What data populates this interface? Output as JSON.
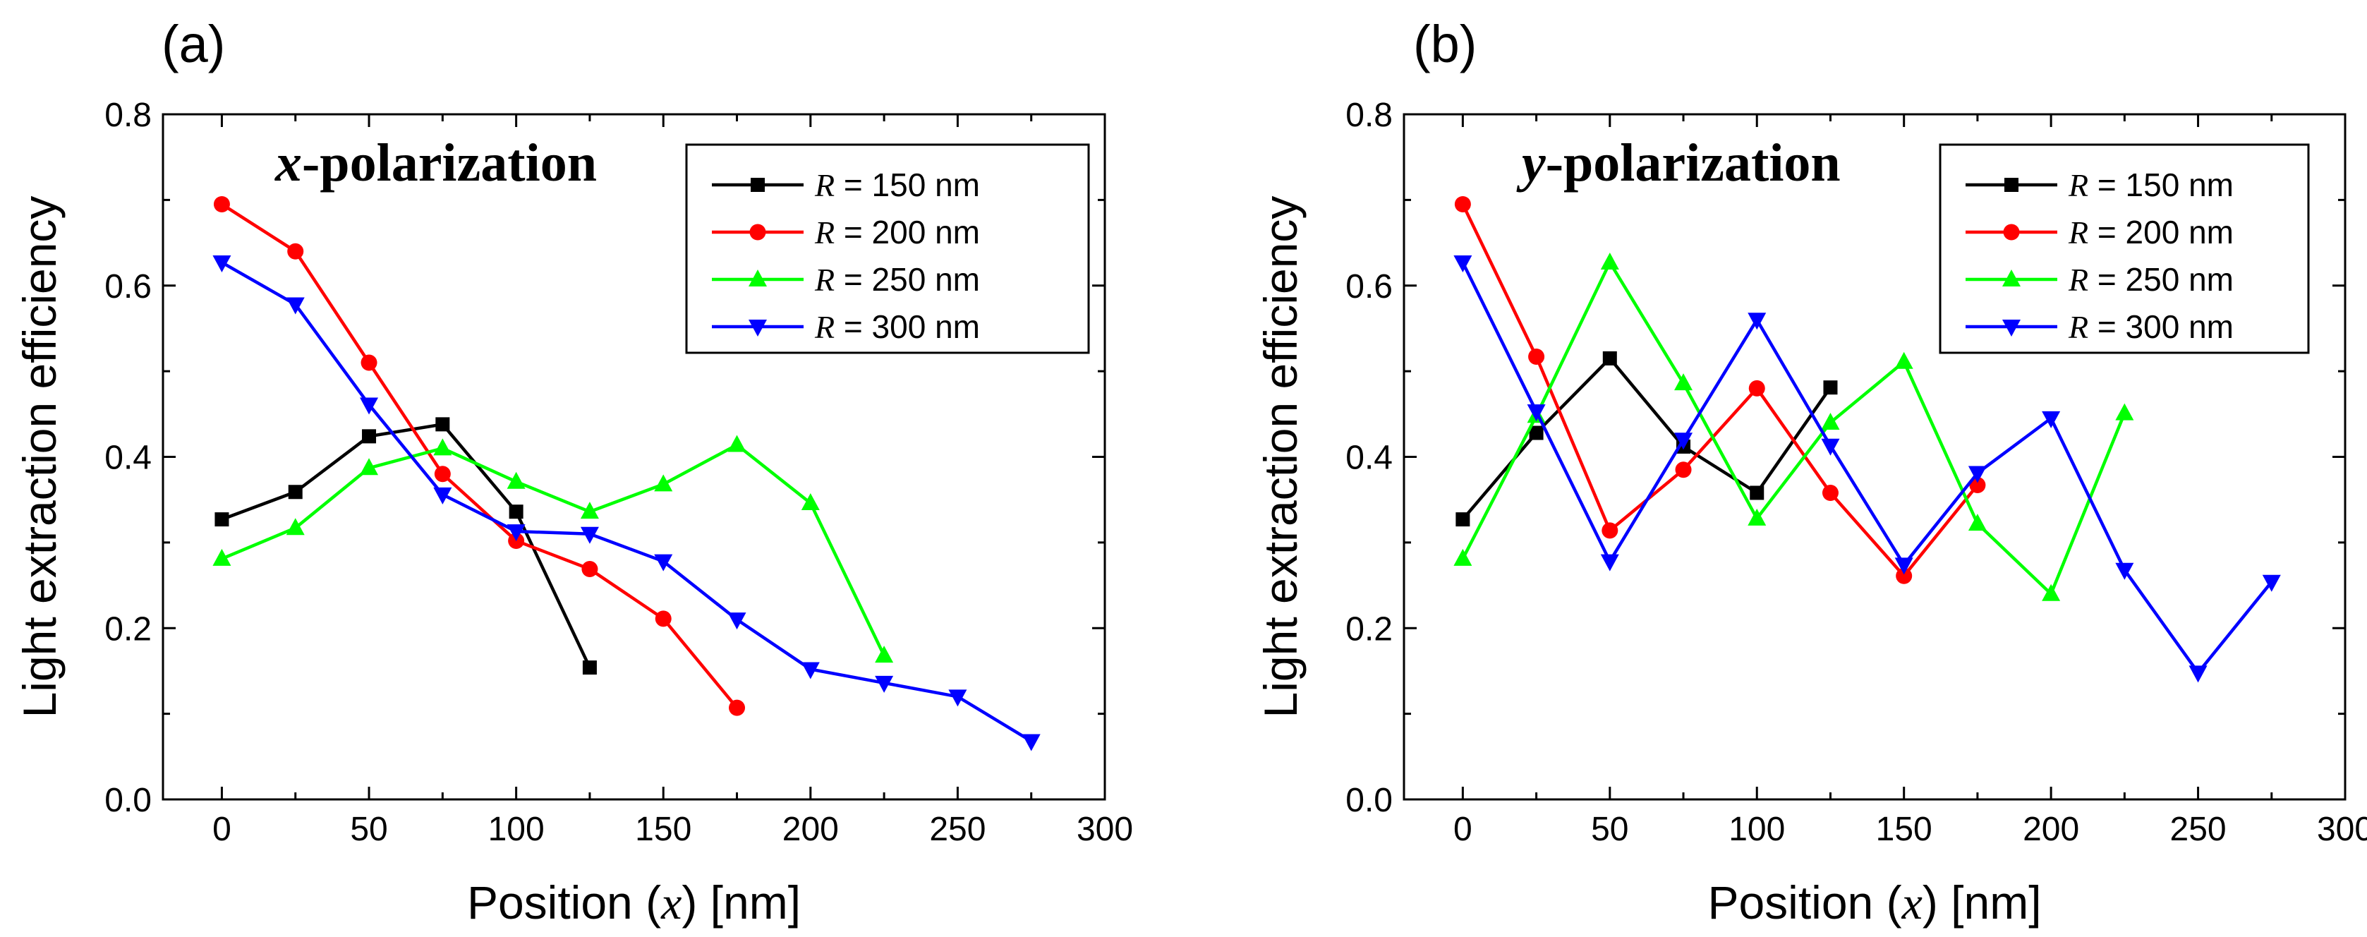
{
  "chart_data": [
    {
      "type": "line",
      "panel_label": "(a)",
      "title_var": "x",
      "title_rest": "-polarization",
      "xlabel_pre": "Position (",
      "xlabel_var": "x",
      "xlabel_post": ") [nm]",
      "ylabel": "Light extraction efficiency",
      "xlim": [
        -20,
        300
      ],
      "ylim": [
        0,
        0.8
      ],
      "xticks": [
        0,
        50,
        100,
        150,
        200,
        250,
        300
      ],
      "yticks": [
        0.0,
        0.2,
        0.4,
        0.6,
        0.8
      ],
      "ytick_labels": [
        "0.0",
        "0.2",
        "0.4",
        "0.6",
        "0.8"
      ],
      "legend_position": "top-right",
      "series": [
        {
          "name": "R = 150 nm",
          "legend_var": "R",
          "legend_rest": " = 150 nm",
          "color": "#000000",
          "marker": "square",
          "x": [
            0,
            25,
            50,
            75,
            100,
            125
          ],
          "y": [
            0.327,
            0.359,
            0.424,
            0.438,
            0.336,
            0.154
          ]
        },
        {
          "name": "R = 200 nm",
          "legend_var": "R",
          "legend_rest": " = 200 nm",
          "color": "#ff0000",
          "marker": "circle",
          "x": [
            0,
            25,
            50,
            75,
            100,
            125,
            150,
            175
          ],
          "y": [
            0.695,
            0.64,
            0.51,
            0.38,
            0.302,
            0.269,
            0.211,
            0.107
          ]
        },
        {
          "name": "R = 250 nm",
          "legend_var": "R",
          "legend_rest": " = 250 nm",
          "color": "#00ff00",
          "marker": "triangle-up",
          "x": [
            0,
            25,
            50,
            75,
            100,
            125,
            150,
            175,
            200,
            225
          ],
          "y": [
            0.281,
            0.317,
            0.387,
            0.41,
            0.371,
            0.336,
            0.368,
            0.414,
            0.346,
            0.168
          ]
        },
        {
          "name": "R = 300 nm",
          "legend_var": "R",
          "legend_rest": " = 300 nm",
          "color": "#0000ff",
          "marker": "triangle-down",
          "x": [
            0,
            25,
            50,
            75,
            100,
            125,
            150,
            175,
            200,
            225,
            250,
            275
          ],
          "y": [
            0.627,
            0.578,
            0.461,
            0.356,
            0.313,
            0.31,
            0.278,
            0.21,
            0.152,
            0.136,
            0.12,
            0.068
          ]
        }
      ]
    },
    {
      "type": "line",
      "panel_label": "(b)",
      "title_var": "y",
      "title_rest": "-polarization",
      "xlabel_pre": "Position (",
      "xlabel_var": "x",
      "xlabel_post": ") [nm]",
      "ylabel": "Light extraction efficiency",
      "xlim": [
        -20,
        300
      ],
      "ylim": [
        0,
        0.8
      ],
      "xticks": [
        0,
        50,
        100,
        150,
        200,
        250,
        300
      ],
      "yticks": [
        0.0,
        0.2,
        0.4,
        0.6,
        0.8
      ],
      "ytick_labels": [
        "0.0",
        "0.2",
        "0.4",
        "0.6",
        "0.8"
      ],
      "legend_position": "top-right",
      "series": [
        {
          "name": "R = 150 nm",
          "legend_var": "R",
          "legend_rest": " = 150 nm",
          "color": "#000000",
          "marker": "square",
          "x": [
            0,
            25,
            50,
            75,
            100,
            125
          ],
          "y": [
            0.327,
            0.428,
            0.515,
            0.412,
            0.358,
            0.481
          ]
        },
        {
          "name": "R = 200 nm",
          "legend_var": "R",
          "legend_rest": " = 200 nm",
          "color": "#ff0000",
          "marker": "circle",
          "x": [
            0,
            25,
            50,
            75,
            100,
            125,
            150,
            175
          ],
          "y": [
            0.695,
            0.517,
            0.314,
            0.385,
            0.48,
            0.358,
            0.261,
            0.367
          ]
        },
        {
          "name": "R = 250 nm",
          "legend_var": "R",
          "legend_rest": " = 250 nm",
          "color": "#00ff00",
          "marker": "triangle-up",
          "x": [
            0,
            25,
            50,
            75,
            100,
            125,
            150,
            175,
            200,
            225
          ],
          "y": [
            0.281,
            0.448,
            0.627,
            0.486,
            0.328,
            0.44,
            0.511,
            0.322,
            0.24,
            0.451
          ]
        },
        {
          "name": "R = 300 nm",
          "legend_var": "R",
          "legend_rest": " = 300 nm",
          "color": "#0000ff",
          "marker": "triangle-down",
          "x": [
            0,
            25,
            50,
            75,
            100,
            125,
            150,
            175,
            200,
            225,
            250,
            275
          ],
          "y": [
            0.627,
            0.453,
            0.278,
            0.42,
            0.56,
            0.413,
            0.274,
            0.381,
            0.445,
            0.268,
            0.148,
            0.254
          ]
        }
      ]
    }
  ]
}
